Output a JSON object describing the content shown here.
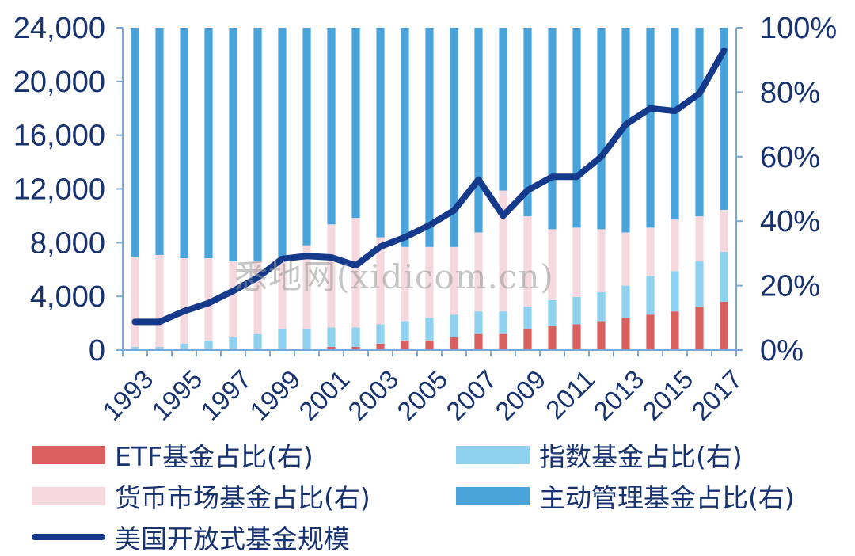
{
  "chart_data": {
    "type": "bar",
    "stacked": true,
    "x_categories": [
      "1993",
      "1994",
      "1995",
      "1996",
      "1997",
      "1998",
      "1999",
      "2000",
      "2001",
      "2002",
      "2003",
      "2004",
      "2005",
      "2006",
      "2007",
      "2008",
      "2009",
      "2010",
      "2011",
      "2012",
      "2013",
      "2014",
      "2015",
      "2016",
      "2017"
    ],
    "x_tick_labels": [
      "1993",
      "1995",
      "1997",
      "1999",
      "2001",
      "2003",
      "2005",
      "2007",
      "2009",
      "2011",
      "2013",
      "2015",
      "2017"
    ],
    "left_axis": {
      "ylim": [
        0,
        24000
      ],
      "ticks": [
        "0",
        "4,000",
        "8,000",
        "12,000",
        "16,000",
        "20,000",
        "24,000"
      ]
    },
    "right_axis": {
      "ylim": [
        0,
        100
      ],
      "ticks": [
        "0%",
        "20%",
        "40%",
        "60%",
        "80%",
        "100%"
      ]
    },
    "series": [
      {
        "name": "ETF基金占比(右)",
        "axis": "right",
        "color": "#d9605e",
        "values": [
          0,
          0,
          0,
          0,
          0,
          0,
          0,
          0,
          1,
          1,
          2,
          3,
          3,
          4,
          5,
          5,
          6.5,
          7.5,
          8,
          9,
          10,
          11,
          12,
          13.5,
          15
        ]
      },
      {
        "name": "指数基金占比(右)",
        "axis": "right",
        "color": "#8fd2f0",
        "values": [
          1,
          1,
          2,
          3,
          4,
          5,
          6.5,
          6.5,
          6,
          6,
          6,
          6,
          7,
          7,
          7,
          7,
          7,
          8,
          8.5,
          9,
          10,
          12,
          12.5,
          14,
          15.5
        ]
      },
      {
        "name": "货币市场基金占比(右)",
        "axis": "right",
        "color": "#f5d9df",
        "values": [
          28,
          28.5,
          26.5,
          25.5,
          23.5,
          22.5,
          22.5,
          26,
          32,
          34,
          27,
          23,
          22,
          21,
          24.5,
          37.5,
          28,
          22,
          21.5,
          19.5,
          16.5,
          15,
          16,
          14,
          13
        ]
      },
      {
        "name": "主动管理基金占比(右)",
        "axis": "right",
        "color": "#4aa4dc",
        "values": [
          71,
          70.5,
          71.5,
          71.5,
          72.5,
          72.5,
          71,
          67.5,
          61,
          59,
          65,
          68,
          68,
          68,
          63.5,
          50.5,
          58.5,
          62.5,
          62,
          62.5,
          63.5,
          62,
          59.5,
          58.5,
          56.5
        ]
      },
      {
        "name": "美国开放式基金规模",
        "axis": "left",
        "type": "line",
        "color": "#153a8c",
        "values": [
          2100,
          2100,
          2900,
          3500,
          4400,
          5400,
          6800,
          7000,
          6900,
          6300,
          7700,
          8400,
          9300,
          10400,
          12700,
          10000,
          11900,
          12900,
          12900,
          14400,
          16800,
          18000,
          17800,
          19100,
          22300
        ]
      }
    ],
    "legend_position": "bottom",
    "grid": false
  },
  "watermark": "悉地网(xidicom.cn)"
}
